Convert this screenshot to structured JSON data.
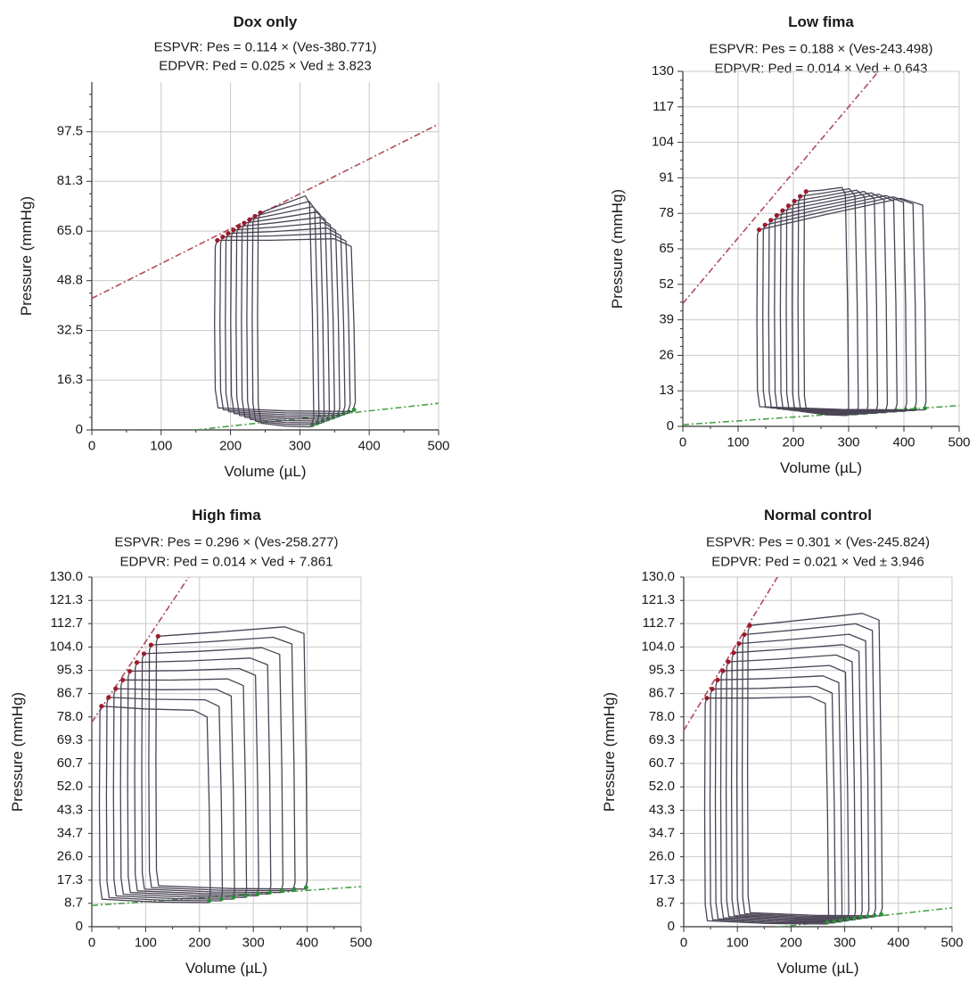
{
  "chart_data": [
    {
      "type": "line",
      "title": "Dox only",
      "subtitle_lines": [
        "ESPVR: Pes = 0.114 × (Ves-380.771)",
        "EDPVR: Ped = 0.025 × Ved ± 3.823"
      ],
      "xlabel": "Volume (µL)",
      "ylabel": "Pressure (mmHg)",
      "xlim": [
        0,
        500
      ],
      "ylim": [
        0,
        113.75
      ],
      "x_ticks": [
        0,
        100,
        200,
        300,
        400,
        500
      ],
      "y_ticks": [
        0,
        16.3,
        32.5,
        48.8,
        65.0,
        81.3,
        97.5
      ],
      "y_tick_labels": [
        "0",
        "16.3",
        "32.5",
        "48.8",
        "65.0",
        "81.3",
        "97.5"
      ],
      "grid": true,
      "espvr_line": {
        "x": [
          0,
          500
        ],
        "y": [
          43,
          100
        ]
      },
      "edpvr_line": {
        "x": [
          150,
          500
        ],
        "y": [
          0,
          8.7
        ]
      },
      "pv_loops": {
        "n": 9,
        "start": {
          "ved": 320,
          "ves": 240,
          "p_first": 71,
          "p_last": 76,
          "edp": 1
        },
        "end": {
          "ved": 380,
          "ves": 178,
          "p_first": 62,
          "p_last": 62,
          "edp": 6
        }
      }
    },
    {
      "type": "line",
      "title": "Low fima",
      "subtitle_lines": [
        "ESPVR: Pes = 0.188 × (Ves-243.498)",
        "EDPVR: Ped = 0.014 × Ved + 0.643"
      ],
      "xlabel": "Volume (µL)",
      "ylabel": "Pressure (mmHg)",
      "xlim": [
        0,
        500
      ],
      "ylim": [
        0,
        130
      ],
      "x_ticks": [
        0,
        100,
        200,
        300,
        400,
        500
      ],
      "y_ticks": [
        0,
        13,
        26,
        39,
        52,
        65,
        78,
        91,
        104,
        117,
        130
      ],
      "y_tick_labels": [
        "0",
        "13",
        "26",
        "39",
        "52",
        "65",
        "78",
        "91",
        "104",
        "117",
        "130"
      ],
      "grid": true,
      "espvr_line": {
        "x": [
          0,
          500
        ],
        "y": [
          45,
          165
        ]
      },
      "edpvr_line": {
        "x": [
          0,
          500
        ],
        "y": [
          0.6,
          7.6
        ]
      },
      "pv_loops": {
        "n": 9,
        "start": {
          "ved": 300,
          "ves": 220,
          "p_first": 86,
          "p_last": 87,
          "edp": 4
        },
        "end": {
          "ved": 440,
          "ves": 135,
          "p_first": 72,
          "p_last": 83,
          "edp": 6
        }
      }
    },
    {
      "type": "line",
      "title": "High fima",
      "subtitle_lines": [
        "ESPVR: Pes = 0.296 × (Ves-258.277)",
        "EDPVR: Ped = 0.014 × Ved + 7.861"
      ],
      "xlabel": "Volume (µL)",
      "ylabel": "Pressure (mmHg)",
      "xlim": [
        0,
        500
      ],
      "ylim": [
        0,
        130
      ],
      "x_ticks": [
        0,
        100,
        200,
        300,
        400,
        500
      ],
      "y_ticks": [
        0,
        8.7,
        17.3,
        26.0,
        34.7,
        43.3,
        52.0,
        60.7,
        69.3,
        78.0,
        86.7,
        95.3,
        104.0,
        112.7,
        121.3,
        130.0
      ],
      "y_tick_labels": [
        "0",
        "8.7",
        "17.3",
        "26.0",
        "34.7",
        "43.3",
        "52.0",
        "60.7",
        "69.3",
        "78.0",
        "86.7",
        "95.3",
        "104.0",
        "112.7",
        "121.3",
        "130.0"
      ],
      "grid": true,
      "espvr_line": {
        "x": [
          0,
          220
        ],
        "y": [
          76,
          142
        ]
      },
      "edpvr_line": {
        "x": [
          0,
          500
        ],
        "y": [
          7.9,
          14.9
        ]
      },
      "pv_loops": {
        "n": 9,
        "start": {
          "ved": 400,
          "ves": 120,
          "p_first": 108,
          "p_last": 111,
          "edp": 14
        },
        "end": {
          "ved": 220,
          "ves": 15,
          "p_first": 82,
          "p_last": 80,
          "edp": 9
        }
      }
    },
    {
      "type": "line",
      "title": "Normal control",
      "subtitle_lines": [
        "ESPVR: Pes = 0.301 × (Ves-245.824)",
        "EDPVR: Ped = 0.021 × Ved ± 3.946"
      ],
      "xlabel": "Volume (µL)",
      "ylabel": "Pressure (mmHg)",
      "xlim": [
        0,
        500
      ],
      "ylim": [
        0,
        130
      ],
      "x_ticks": [
        0,
        100,
        200,
        300,
        400,
        500
      ],
      "y_ticks": [
        0,
        8.7,
        17.3,
        26.0,
        34.7,
        43.3,
        52.0,
        60.7,
        69.3,
        78.0,
        86.7,
        95.3,
        104.0,
        112.7,
        121.3,
        130.0
      ],
      "y_tick_labels": [
        "0",
        "8.7",
        "17.3",
        "26.0",
        "34.7",
        "43.3",
        "52.0",
        "60.7",
        "69.3",
        "78.0",
        "86.7",
        "95.3",
        "104.0",
        "112.7",
        "121.3",
        "130.0"
      ],
      "grid": true,
      "espvr_line": {
        "x": [
          0,
          190
        ],
        "y": [
          73,
          135
        ]
      },
      "edpvr_line": {
        "x": [
          0,
          500
        ],
        "y": [
          -4,
          7
        ]
      },
      "pv_loops": {
        "n": 9,
        "start": {
          "ved": 370,
          "ves": 120,
          "p_first": 112,
          "p_last": 116,
          "edp": 4
        },
        "end": {
          "ved": 270,
          "ves": 40,
          "p_first": 85,
          "p_last": 85,
          "edp": 1
        }
      }
    }
  ]
}
